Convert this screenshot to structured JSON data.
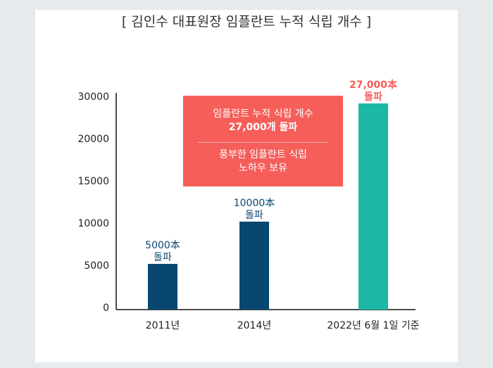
{
  "chart_data": {
    "type": "bar",
    "title": "[ 김인수 대표원장 임플란트 누적 식립 개수 ]",
    "categories": [
      "2011년",
      "2014년",
      "2022년 6월 1일 기준"
    ],
    "values": [
      5000,
      10000,
      27000
    ],
    "data_labels": [
      [
        "5000本",
        "돌파"
      ],
      [
        "10000本",
        "돌파"
      ],
      [
        "27,000本",
        "돌파"
      ]
    ],
    "y_tick_labels": [
      "0",
      "5000",
      "10000",
      "15000",
      "20000",
      "30000"
    ],
    "ylim": [
      0,
      30000
    ],
    "grid": false,
    "colors": {
      "bar": "#08476f",
      "highlight_bar": "#1bb8a6",
      "highlight_label": "#f65e5a",
      "callout": "#f65e5a"
    },
    "annotation": {
      "line1": "임플란트 누적 식립 개수",
      "line2": "27,000개 돌파",
      "line3": "풍부한 임플란트 식립",
      "line4": "노하우 보유"
    }
  }
}
